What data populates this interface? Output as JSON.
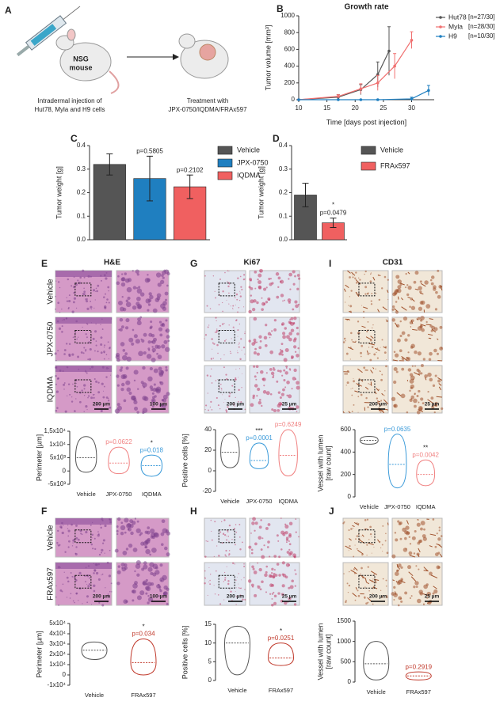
{
  "schematic": {
    "panel": "A",
    "mouse_label": [
      "NSG",
      "mouse"
    ],
    "left_caption": [
      "Intradermal injection of",
      "Hut78, Myla and H9 cells"
    ],
    "right_caption": [
      "Treatment with",
      "JPX-0750/IQDMA/FRAx597"
    ]
  },
  "image_panels": [
    {
      "panel": "E",
      "title": "H&E",
      "rows": [
        "Vehicle",
        "JPX-0750",
        "IQDMA"
      ],
      "scale_bars": [
        "200 µm",
        "100 µm"
      ],
      "stain": "he"
    },
    {
      "panel": "G",
      "title": "Ki67",
      "rows": [],
      "scale_bars": [
        "200 µm",
        "25 µm"
      ],
      "stain": "ki"
    },
    {
      "panel": "I",
      "title": "CD31",
      "rows": [],
      "scale_bars": [
        "200 µm",
        "25 µm"
      ],
      "stain": "cd"
    },
    {
      "panel": "F",
      "rows": [
        "Vehicle",
        "FRAx597"
      ],
      "scale_bars": [
        "200 µm",
        "100 µm"
      ],
      "stain": "he"
    },
    {
      "panel": "H",
      "rows": [],
      "scale_bars": [
        "200 µm",
        "25 µm"
      ],
      "stain": "ki"
    },
    {
      "panel": "J",
      "rows": [],
      "scale_bars": [
        "200 µm",
        "25 µm"
      ],
      "stain": "cd"
    }
  ],
  "chart_data": [
    {
      "type": "line",
      "panel": "B",
      "title": "Growth rate",
      "xlabel": "Time [days post injection]",
      "ylabel": "Tumor volume [mm³]",
      "xlim": [
        10,
        34
      ],
      "xticks": [
        10,
        15,
        20,
        25,
        30
      ],
      "ylim": [
        0,
        1000
      ],
      "yticks": [
        0,
        200,
        400,
        600,
        800,
        1000
      ],
      "series": [
        {
          "name": "Hut78",
          "n": "[n=27/30]",
          "color": "#555555",
          "x": [
            10,
            17,
            21,
            24,
            26
          ],
          "values": [
            0,
            30,
            120,
            300,
            580
          ],
          "errors": [
            5,
            30,
            60,
            150,
            290
          ]
        },
        {
          "name": "Myla",
          "n": "[n=28/30]",
          "color": "#f07070",
          "x": [
            10,
            17,
            21,
            24,
            27,
            30
          ],
          "values": [
            0,
            40,
            130,
            200,
            400,
            710
          ],
          "errors": [
            5,
            20,
            60,
            90,
            150,
            100
          ]
        },
        {
          "name": "H9",
          "n": "[n=10/30]",
          "color": "#1f7fc0",
          "x": [
            10,
            17,
            21,
            24,
            30,
            33
          ],
          "values": [
            0,
            0,
            0,
            0,
            10,
            110
          ],
          "errors": [
            0,
            0,
            0,
            0,
            20,
            60
          ]
        }
      ]
    },
    {
      "type": "bar",
      "panel": "C",
      "ylabel": "Tumor weight [g]",
      "ylim": [
        0,
        0.4
      ],
      "yticks": [
        {
          "value": 0,
          "label": "0.0"
        },
        0.1,
        0.2,
        0.3,
        0.4
      ],
      "categories": [
        "Vehicle",
        "JPX-0750",
        "IQDMA"
      ],
      "colors": [
        "#555555",
        "#1f7fc0",
        "#f06060"
      ],
      "values": [
        0.32,
        0.26,
        0.225
      ],
      "errors": [
        0.045,
        0.095,
        0.05
      ],
      "p_values": [
        null,
        "p=0.5805",
        "p=0.2102"
      ]
    },
    {
      "type": "bar",
      "panel": "D",
      "ylabel": "Tumor weight [g]",
      "ylim": [
        0,
        0.4
      ],
      "yticks": [
        {
          "value": 0,
          "label": "0.0"
        },
        0.1,
        0.2,
        0.3,
        0.4
      ],
      "categories": [
        "Vehicle",
        "FRAx597"
      ],
      "colors": [
        "#555555",
        "#f06060"
      ],
      "values": [
        0.19,
        0.072
      ],
      "errors": [
        0.05,
        0.02
      ],
      "stars": [
        null,
        "*"
      ],
      "p_values": [
        null,
        "p=0.0479"
      ]
    },
    {
      "type": "violin",
      "ylabel": [
        "Perimeter [µm]"
      ],
      "ylim": [
        -5000,
        15000
      ],
      "yticks": [
        {
          "value": -5000,
          "label": "-5x10³"
        },
        0,
        {
          "value": 5000,
          "label": "5x10³"
        },
        {
          "value": 10000,
          "label": "1x10⁴"
        },
        {
          "value": 15000,
          "label": "1,5x10⁴"
        }
      ],
      "categories": [
        "Vehicle",
        "JPX-0750",
        "IQDMA"
      ],
      "colors": [
        "#555555",
        "#f08080",
        "#3a9ad9"
      ],
      "min": [
        -500,
        -1000,
        -2000
      ],
      "median": [
        5000,
        3000,
        2000
      ],
      "max": [
        13000,
        9000,
        6000
      ],
      "stars": [
        null,
        null,
        "*"
      ],
      "p_values": [
        null,
        "p=0.0622",
        "p=0.018"
      ]
    },
    {
      "type": "violin",
      "ylabel": [
        "Positive cells [%]"
      ],
      "ylim": [
        -20,
        40
      ],
      "yticks": [
        -20,
        0,
        20,
        40
      ],
      "categories": [
        "Vehicle",
        "JPX-0750",
        "IQDMA"
      ],
      "colors": [
        "#555555",
        "#3a9ad9",
        "#f08080"
      ],
      "min": [
        3,
        2,
        -5
      ],
      "median": [
        18,
        10,
        15
      ],
      "max": [
        36,
        27,
        40
      ],
      "stars": [
        null,
        "***",
        null
      ],
      "p_values": [
        null,
        "p=0.0001",
        "p=0.6249"
      ]
    },
    {
      "type": "violin",
      "ylabel": [
        "Vessel with lumen",
        "[raw count]"
      ],
      "ylim": [
        0,
        600
      ],
      "yticks": [
        0,
        200,
        400,
        600
      ],
      "categories": [
        "Vehicle",
        "JPX-0750",
        "IQDMA"
      ],
      "colors": [
        "#555555",
        "#3a9ad9",
        "#f08080"
      ],
      "min": [
        470,
        80,
        100
      ],
      "median": [
        505,
        290,
        200
      ],
      "max": [
        540,
        560,
        330
      ],
      "stars": [
        null,
        null,
        "**"
      ],
      "p_values": [
        null,
        "p=0.0635",
        "p=0.0042"
      ]
    },
    {
      "type": "violin",
      "ylabel": [
        "Perimeter [µm]"
      ],
      "ylim": [
        -10000,
        50000
      ],
      "yticks": [
        {
          "value": -10000,
          "label": "-1x10⁴"
        },
        0,
        {
          "value": 10000,
          "label": "1x10⁴"
        },
        {
          "value": 20000,
          "label": "2x10⁴"
        },
        {
          "value": 30000,
          "label": "3x10⁴"
        },
        {
          "value": 40000,
          "label": "4x10⁴"
        },
        {
          "value": 50000,
          "label": "5x10⁴"
        }
      ],
      "categories": [
        "Vehicle",
        "FRAx597"
      ],
      "colors": [
        "#555555",
        "#c0392b"
      ],
      "min": [
        15000,
        0
      ],
      "median": [
        24000,
        12000
      ],
      "max": [
        32000,
        35000
      ],
      "stars": [
        null,
        "*"
      ],
      "p_values": [
        null,
        "p=0.034"
      ]
    },
    {
      "type": "violin",
      "ylabel": [
        "Positive cells [%]"
      ],
      "ylim": [
        0,
        15
      ],
      "yticks": [
        0,
        5,
        10,
        15
      ],
      "categories": [
        "Vehicle",
        "FRAx597"
      ],
      "colors": [
        "#555555",
        "#c0392b"
      ],
      "min": [
        1.5,
        4
      ],
      "median": [
        10,
        6
      ],
      "max": [
        14.5,
        10
      ],
      "stars": [
        null,
        "*"
      ],
      "p_values": [
        null,
        "p=0.0251"
      ]
    },
    {
      "type": "violin",
      "ylabel": [
        "Vessel with lumen",
        "[raw count]"
      ],
      "ylim": [
        0,
        1500
      ],
      "yticks": [
        0,
        500,
        1000,
        1500
      ],
      "categories": [
        "Vehicle",
        "FRAx597"
      ],
      "colors": [
        "#555555",
        "#c0392b"
      ],
      "min": [
        50,
        50
      ],
      "median": [
        450,
        150
      ],
      "max": [
        1000,
        250
      ],
      "p_values": [
        null,
        "p=0.2919"
      ]
    }
  ]
}
